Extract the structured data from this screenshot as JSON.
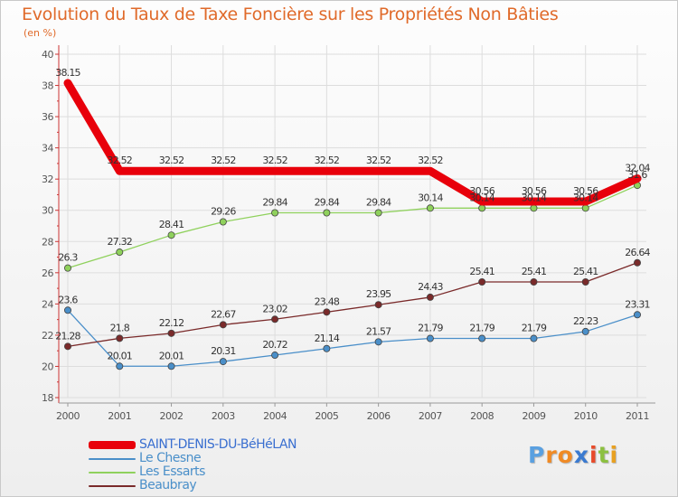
{
  "title": "Evolution du Taux de Taxe Foncière sur les Propriétés Non Bâties",
  "unit_label": "(en %)",
  "logo": {
    "letters": [
      "P",
      "r",
      "o",
      "x",
      "i",
      "t",
      "i"
    ],
    "colors": [
      "#5aa0e0",
      "#f08a24",
      "#f08a24",
      "#3a7ad0",
      "#e84a2a",
      "#8cc040",
      "#e8a020"
    ]
  },
  "chart_data": {
    "type": "line",
    "title": "Evolution du Taux de Taxe Foncière sur les Propriétés Non Bâties",
    "ylabel": "(en %)",
    "xlabel": "",
    "x": [
      "2000",
      "2001",
      "2002",
      "2003",
      "2004",
      "2005",
      "2006",
      "2007",
      "2008",
      "2009",
      "2010",
      "2011"
    ],
    "ylim": [
      18,
      40
    ],
    "yticks": [
      "18",
      "20",
      "22",
      "24",
      "26",
      "28",
      "30",
      "32",
      "34",
      "36",
      "38",
      "40"
    ],
    "grid": true,
    "legend_position": "bottom-left",
    "series": [
      {
        "name": "SAINT-DENIS-DU-BéHéLAN",
        "color": "#e8000b",
        "width": 9,
        "markers": false,
        "values": [
          38.15,
          32.52,
          32.52,
          32.52,
          32.52,
          32.52,
          32.52,
          32.52,
          30.56,
          30.56,
          30.56,
          32.04
        ],
        "labels": [
          "38.15",
          "32.52",
          "32.52",
          "32.52",
          "32.52",
          "32.52",
          "32.52",
          "32.52",
          "30.56",
          "30.56",
          "30.56",
          "32.04"
        ]
      },
      {
        "name": "Le Chesne",
        "color": "#4a8fc9",
        "width": 1.3,
        "markers": true,
        "values": [
          23.6,
          20.01,
          20.01,
          20.31,
          20.72,
          21.14,
          21.57,
          21.79,
          21.79,
          21.79,
          22.23,
          23.31
        ],
        "labels": [
          "23.6",
          "20.01",
          "20.01",
          "20.31",
          "20.72",
          "21.14",
          "21.57",
          "21.79",
          "21.79",
          "21.79",
          "22.23",
          "23.31"
        ]
      },
      {
        "name": "Les Essarts",
        "color": "#8fd15c",
        "width": 1.3,
        "markers": true,
        "values": [
          26.3,
          27.32,
          28.41,
          29.26,
          29.84,
          29.84,
          29.84,
          30.14,
          30.14,
          30.14,
          30.14,
          31.6
        ],
        "labels": [
          "26.3",
          "27.32",
          "28.41",
          "29.26",
          "29.84",
          "29.84",
          "29.84",
          "30.14",
          "30.14",
          "30.14",
          "30.14",
          "31.6"
        ]
      },
      {
        "name": "Beaubray",
        "color": "#7a2a2a",
        "width": 1.3,
        "markers": true,
        "values": [
          21.28,
          21.8,
          22.12,
          22.67,
          23.02,
          23.48,
          23.95,
          24.43,
          25.41,
          25.41,
          25.41,
          26.64
        ],
        "labels": [
          "21.28",
          "21.8",
          "22.12",
          "22.67",
          "23.02",
          "23.48",
          "23.95",
          "24.43",
          "25.41",
          "25.41",
          "25.41",
          "26.64"
        ]
      }
    ]
  }
}
